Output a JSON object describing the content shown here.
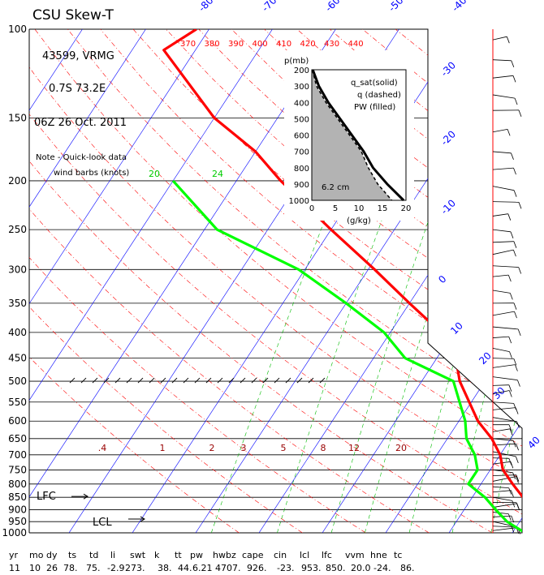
{
  "chart_data": {
    "type": "line",
    "title": "CSU Skew-T",
    "station": "43599, VRMG",
    "location": "0.7S  73.2E",
    "datetime": "06Z 26 Oct. 2011",
    "note_line1": "Note - Quick-look data",
    "note_line2": "wind barbs (knots)",
    "pressure_levels": [
      100,
      150,
      200,
      250,
      300,
      350,
      400,
      450,
      500,
      550,
      600,
      650,
      700,
      750,
      800,
      850,
      900,
      950,
      1000
    ],
    "isotherms": [
      -80,
      -70,
      -60,
      -50,
      -40,
      -30,
      -20,
      -10,
      0,
      10,
      20,
      30,
      40
    ],
    "theta_labels": [
      370,
      380,
      390,
      400,
      410,
      420,
      430,
      440
    ],
    "mixing_ratio_upper_labels": [
      20,
      24
    ],
    "mixing_ratio_lower_labels": [
      ".4",
      "1",
      "2",
      "3",
      "5",
      "8",
      "12",
      "20"
    ],
    "temperature": [
      {
        "p": 100,
        "t": -82
      },
      {
        "p": 110,
        "t": -85
      },
      {
        "p": 150,
        "t": -70
      },
      {
        "p": 175,
        "t": -60
      },
      {
        "p": 200,
        "t": -53
      },
      {
        "p": 250,
        "t": -40
      },
      {
        "p": 300,
        "t": -29
      },
      {
        "p": 350,
        "t": -20
      },
      {
        "p": 400,
        "t": -12
      },
      {
        "p": 450,
        "t": -7
      },
      {
        "p": 500,
        "t": -4
      },
      {
        "p": 600,
        "t": 3
      },
      {
        "p": 650,
        "t": 7
      },
      {
        "p": 700,
        "t": 10
      },
      {
        "p": 750,
        "t": 12
      },
      {
        "p": 800,
        "t": 15
      },
      {
        "p": 850,
        "t": 18
      },
      {
        "p": 900,
        "t": 21
      },
      {
        "p": 950,
        "t": 24
      },
      {
        "p": 1000,
        "t": 27
      }
    ],
    "dewpoint": [
      {
        "p": 200,
        "t": -70
      },
      {
        "p": 250,
        "t": -58
      },
      {
        "p": 300,
        "t": -41
      },
      {
        "p": 350,
        "t": -30
      },
      {
        "p": 400,
        "t": -21
      },
      {
        "p": 450,
        "t": -15
      },
      {
        "p": 500,
        "t": -5
      },
      {
        "p": 600,
        "t": 1
      },
      {
        "p": 650,
        "t": 3
      },
      {
        "p": 700,
        "t": 6
      },
      {
        "p": 750,
        "t": 8
      },
      {
        "p": 800,
        "t": 8
      },
      {
        "p": 850,
        "t": 12
      },
      {
        "p": 900,
        "t": 15
      },
      {
        "p": 950,
        "t": 18
      },
      {
        "p": 1000,
        "t": 22
      }
    ],
    "markers": {
      "lfc": "LFC",
      "lcl": "LCL",
      "lfc_p": 850,
      "lcl_p": 953
    },
    "inset": {
      "title_line1": "q_sat(solid)",
      "title_line2": "q (dashed)",
      "title_line3": "PW (filled)",
      "ylabel": "p(mb)",
      "xlabel": "(g/kg)",
      "yticks": [
        200,
        300,
        400,
        500,
        600,
        700,
        800,
        900,
        1000
      ],
      "xticks": [
        0,
        5,
        10,
        15,
        20
      ],
      "pw_label": "6.2 cm",
      "qsat": [
        {
          "p": 200,
          "q": 0.2
        },
        {
          "p": 300,
          "q": 1.5
        },
        {
          "p": 400,
          "q": 3.5
        },
        {
          "p": 500,
          "q": 6
        },
        {
          "p": 600,
          "q": 8.5
        },
        {
          "p": 700,
          "q": 11
        },
        {
          "p": 800,
          "q": 13
        },
        {
          "p": 900,
          "q": 16
        },
        {
          "p": 1000,
          "q": 19.5
        }
      ],
      "q": [
        {
          "p": 200,
          "q": 0.1
        },
        {
          "p": 300,
          "q": 1
        },
        {
          "p": 400,
          "q": 3
        },
        {
          "p": 500,
          "q": 5.5
        },
        {
          "p": 600,
          "q": 8
        },
        {
          "p": 700,
          "q": 10.5
        },
        {
          "p": 800,
          "q": 12
        },
        {
          "p": 900,
          "q": 14
        },
        {
          "p": 1000,
          "q": 17
        }
      ]
    },
    "stats_headers": [
      "yr",
      "mo",
      "dy",
      "ts",
      "td",
      "li",
      "swt",
      "k",
      "tt",
      "pw",
      "hwbz",
      "cape",
      "cin",
      "lcl",
      "lfc",
      "vvm",
      "hne",
      "tc"
    ],
    "stats_values": [
      "11",
      "10",
      "26",
      "78.",
      "75.",
      "-2.9",
      "273.",
      "38.",
      "44.",
      "6.21",
      "4707.",
      "926.",
      "-23.",
      "953.",
      "850.",
      "20.0",
      "-24.",
      "86."
    ]
  },
  "colors": {
    "temperature": "#ff0000",
    "dewpoint": "#00ff00",
    "isotherm": "#0000ff",
    "adiabat": "#ff0000",
    "mixing": "#00bb00",
    "isobar": "#000000"
  }
}
